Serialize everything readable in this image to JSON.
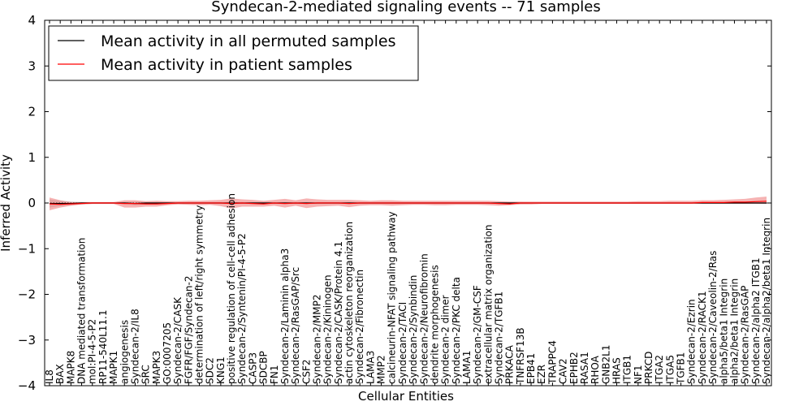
{
  "chart_data": {
    "type": "line",
    "title": "Syndecan-2-mediated signaling events -- 71 samples",
    "xlabel": "Cellular Entities",
    "ylabel": "Inferred Activity",
    "ylim": [
      -4,
      4
    ],
    "yticks": [
      -4,
      -3,
      -2,
      -1,
      0,
      1,
      2,
      3,
      4
    ],
    "ytick_labels": [
      "−4",
      "−3",
      "−2",
      "−1",
      "0",
      "1",
      "2",
      "3",
      "4"
    ],
    "legend_position": "top-left",
    "colors": {
      "permuted": "#000000",
      "patient": "#ff0000",
      "patient_band": "#f08080",
      "permuted_band": "#c8c8c8"
    },
    "categories": [
      "IL8",
      "BAX",
      "MAPK8",
      "DNA mediated transformation",
      "mol:PI-4-5-P2",
      "RP11-540L11.1",
      "MAPK1",
      "angiogenesis",
      "Syndecan-2/IL8",
      "SRC",
      "MAPK3",
      "GO:0007205",
      "Syndecan-2/CASK",
      "FGFR/FGF/Syndecan-2",
      "determination of left/right symmetry",
      "SDC2",
      "KNG1",
      "positive regulation of cell-cell adhesion",
      "Syndecan-2/Syntenin/PI-4-5-P2",
      "CASP3",
      "SDCBP",
      "FN1",
      "Syndecan-2/Laminin alpha3",
      "Syndecan-2/RasGAP/Src",
      "CSF2",
      "Syndecan-2/MMP2",
      "Syndecan-2/Kininogen",
      "Syndecan-2/CASK/Protein 4.1",
      "actin cytoskeleton reorganization",
      "Syndecan-2/Fibronectin",
      "LAMA3",
      "MMP2",
      "calcineurin-NFAT signaling pathway",
      "Syndecan-2/TACI",
      "Syndecan-2/Synbindin",
      "Syndecan-2/Neurofibromin",
      "dendrite morphogenesis",
      "Syndecan-2 dimer",
      "Syndecan-2/PKC delta",
      "LAMA1",
      "Syndecan-2/GM-CSF",
      "extracellular matrix organization",
      "Syndecan-2/TGFB1",
      "PRKACA",
      "TNFRSF13B",
      "EPB41",
      "EZR",
      "TRAPPC4",
      "CAV2",
      "EPHB2",
      "RASA1",
      "RHOA",
      "GNB2L1",
      "HRAS",
      "ITGB1",
      "NF1",
      "PRKCD",
      "ITGA2",
      "ITGA5",
      "TGFB1",
      "Syndecan-2/Ezrin",
      "Syndecan-2/RACK1",
      "Syndecan-2/Caveolin-2/Ras",
      "alpha5/beta1 Integrin",
      "alpha2/beta1 Integrin",
      "Syndecan-2/RasGAP",
      "Syndecan-2/alpha2 ITGB1",
      "Syndecan-2/alpha2/beta1 Integrin"
    ],
    "series": [
      {
        "name": "Mean activity in all permuted samples",
        "values": [
          -0.01,
          -0.01,
          -0.01,
          0.0,
          0.0,
          0.0,
          0.0,
          0.0,
          -0.01,
          0.0,
          0.0,
          0.0,
          0.0,
          0.0,
          0.0,
          0.0,
          0.0,
          0.0,
          0.0,
          0.0,
          0.0,
          0.0,
          0.0,
          0.0,
          0.0,
          0.0,
          0.0,
          0.0,
          0.0,
          0.0,
          0.0,
          0.0,
          0.0,
          0.0,
          0.0,
          0.0,
          0.0,
          0.0,
          0.0,
          0.0,
          0.0,
          0.0,
          0.0,
          0.0,
          0.0,
          0.0,
          0.0,
          0.0,
          0.0,
          0.0,
          0.0,
          0.0,
          0.0,
          0.0,
          0.0,
          0.0,
          0.0,
          0.0,
          0.0,
          0.0,
          0.0,
          0.0,
          0.0,
          0.0,
          0.0,
          0.0,
          0.0,
          0.0
        ],
        "lower": [
          -0.1,
          -0.07,
          -0.05,
          -0.03,
          -0.02,
          -0.02,
          -0.02,
          -0.02,
          -0.05,
          -0.03,
          -0.03,
          -0.02,
          -0.02,
          -0.02,
          -0.02,
          -0.02,
          -0.02,
          -0.02,
          -0.02,
          -0.02,
          -0.02,
          -0.02,
          -0.02,
          -0.02,
          -0.02,
          -0.02,
          -0.02,
          -0.02,
          -0.02,
          -0.02,
          -0.02,
          -0.02,
          -0.02,
          -0.02,
          -0.02,
          -0.02,
          -0.02,
          -0.02,
          -0.02,
          -0.02,
          -0.02,
          -0.02,
          -0.02,
          -0.02,
          -0.02,
          -0.01,
          -0.01,
          -0.01,
          -0.01,
          -0.01,
          -0.01,
          -0.01,
          -0.01,
          -0.01,
          -0.01,
          -0.01,
          -0.01,
          -0.01,
          -0.01,
          -0.01,
          -0.01,
          -0.01,
          -0.01,
          -0.01,
          -0.01,
          -0.01,
          -0.01,
          -0.02
        ],
        "upper": [
          0.08,
          0.05,
          0.03,
          0.02,
          0.02,
          0.02,
          0.02,
          0.02,
          0.03,
          0.02,
          0.02,
          0.02,
          0.02,
          0.02,
          0.02,
          0.02,
          0.02,
          0.02,
          0.02,
          0.02,
          0.02,
          0.02,
          0.02,
          0.02,
          0.02,
          0.02,
          0.02,
          0.02,
          0.02,
          0.02,
          0.02,
          0.02,
          0.02,
          0.02,
          0.02,
          0.02,
          0.02,
          0.02,
          0.02,
          0.02,
          0.02,
          0.02,
          0.02,
          0.02,
          0.02,
          0.01,
          0.01,
          0.01,
          0.01,
          0.01,
          0.01,
          0.01,
          0.01,
          0.01,
          0.01,
          0.01,
          0.01,
          0.01,
          0.01,
          0.01,
          0.01,
          0.01,
          0.01,
          0.01,
          0.01,
          0.01,
          0.01,
          0.02
        ]
      },
      {
        "name": "Mean activity in patient samples",
        "values": [
          -0.02,
          -0.03,
          -0.02,
          -0.01,
          0.0,
          0.0,
          0.0,
          -0.01,
          -0.01,
          -0.02,
          -0.02,
          -0.01,
          0.0,
          0.0,
          0.0,
          0.0,
          0.0,
          -0.01,
          0.0,
          -0.01,
          -0.02,
          0.0,
          -0.01,
          0.0,
          -0.01,
          0.0,
          0.0,
          0.0,
          -0.01,
          0.0,
          0.0,
          0.0,
          0.0,
          0.0,
          0.0,
          0.0,
          0.0,
          0.0,
          0.0,
          0.0,
          0.0,
          0.0,
          -0.01,
          -0.02,
          0.0,
          0.0,
          0.0,
          0.0,
          0.0,
          0.0,
          0.0,
          0.0,
          0.0,
          0.0,
          0.0,
          0.0,
          0.0,
          0.0,
          0.0,
          0.0,
          0.0,
          0.01,
          0.01,
          0.01,
          0.02,
          0.02,
          0.03,
          0.04
        ],
        "lower": [
          -0.16,
          -0.1,
          -0.06,
          -0.03,
          -0.02,
          -0.02,
          -0.02,
          -0.1,
          -0.1,
          -0.08,
          -0.08,
          -0.05,
          -0.03,
          -0.04,
          -0.05,
          -0.04,
          -0.07,
          -0.12,
          -0.08,
          -0.08,
          -0.08,
          -0.06,
          -0.1,
          -0.06,
          -0.11,
          -0.08,
          -0.07,
          -0.06,
          -0.09,
          -0.06,
          -0.05,
          -0.05,
          -0.06,
          -0.05,
          -0.04,
          -0.04,
          -0.05,
          -0.05,
          -0.04,
          -0.04,
          -0.04,
          -0.05,
          -0.06,
          -0.05,
          -0.03,
          -0.03,
          -0.02,
          -0.02,
          -0.02,
          -0.02,
          -0.02,
          -0.02,
          -0.02,
          -0.02,
          -0.02,
          -0.02,
          -0.02,
          -0.02,
          -0.02,
          -0.02,
          -0.02,
          -0.02,
          -0.02,
          -0.02,
          -0.02,
          -0.02,
          -0.02,
          -0.02
        ],
        "upper": [
          0.12,
          0.06,
          0.02,
          0.02,
          0.02,
          0.02,
          0.02,
          0.06,
          0.06,
          0.04,
          0.05,
          0.04,
          0.04,
          0.05,
          0.05,
          0.06,
          0.07,
          0.1,
          0.08,
          0.07,
          0.05,
          0.07,
          0.09,
          0.06,
          0.1,
          0.08,
          0.07,
          0.07,
          0.07,
          0.06,
          0.05,
          0.06,
          0.06,
          0.05,
          0.05,
          0.05,
          0.05,
          0.05,
          0.05,
          0.05,
          0.05,
          0.05,
          0.04,
          0.03,
          0.03,
          0.03,
          0.03,
          0.03,
          0.03,
          0.03,
          0.03,
          0.03,
          0.03,
          0.03,
          0.03,
          0.04,
          0.04,
          0.04,
          0.05,
          0.05,
          0.05,
          0.06,
          0.06,
          0.07,
          0.08,
          0.09,
          0.12,
          0.14
        ]
      }
    ]
  }
}
